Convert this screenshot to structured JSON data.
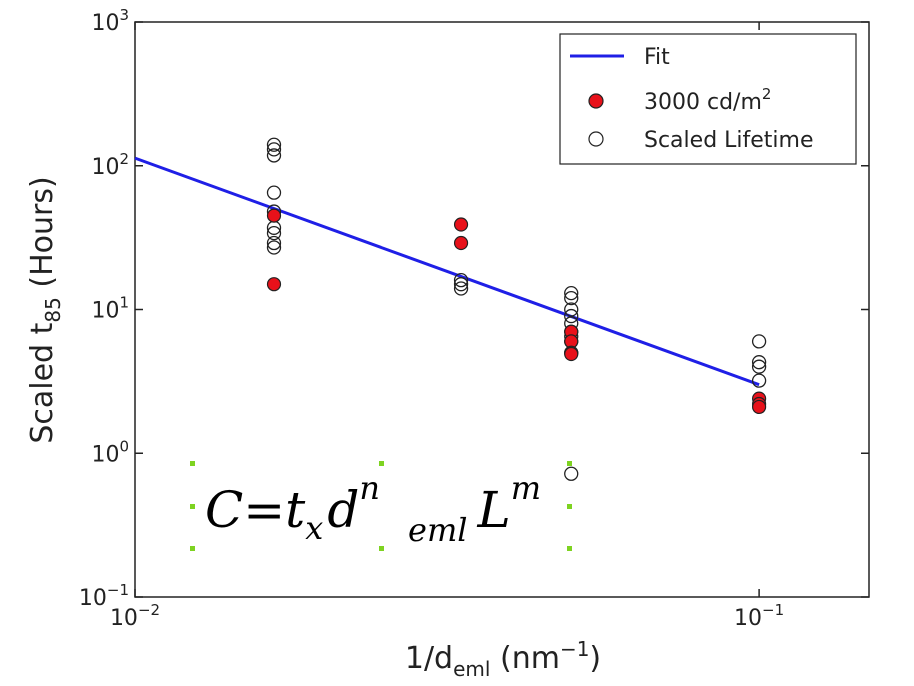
{
  "chart_data": {
    "type": "scatter",
    "xlabel": {
      "base": "1/d",
      "sub": "eml",
      "rest": " (nm",
      "sup": "−1",
      "close": ")"
    },
    "ylabel": {
      "base": "Scaled t",
      "sub": "85",
      "rest": " (Hours)"
    },
    "x_scale": "log",
    "y_scale": "log",
    "xlim": [
      0.01,
      0.15
    ],
    "ylim": [
      0.1,
      1000
    ],
    "x_ticks": [
      {
        "value": 0.01,
        "base": "10",
        "exp": "−2"
      },
      {
        "value": 0.1,
        "base": "10",
        "exp": "−1"
      }
    ],
    "y_ticks": [
      {
        "value": 0.1,
        "base": "10",
        "exp": "−1"
      },
      {
        "value": 1,
        "base": "10",
        "exp": "0"
      },
      {
        "value": 10,
        "base": "10",
        "exp": "1"
      },
      {
        "value": 100,
        "base": "10",
        "exp": "2"
      },
      {
        "value": 1000,
        "base": "10",
        "exp": "3"
      }
    ],
    "grid": false,
    "legend_position": "top-right",
    "series": [
      {
        "name": "Fit",
        "kind": "line",
        "color": "#1f1fe6",
        "x": [
          0.01,
          0.1
        ],
        "y": [
          113,
          3.0
        ]
      },
      {
        "name": "3000 cd/m",
        "name_sup": "2",
        "kind": "filled-marker",
        "color": "#e8111a",
        "x": [
          0.0167,
          0.0167,
          0.0333,
          0.0333,
          0.05,
          0.05,
          0.05,
          0.05,
          0.1,
          0.1,
          0.1
        ],
        "y": [
          45,
          15,
          39,
          29,
          7.0,
          6.0,
          5.0,
          4.9,
          2.4,
          2.2,
          2.1
        ]
      },
      {
        "name": "Scaled Lifetime",
        "kind": "open-marker",
        "color": "#222222",
        "x": [
          0.0167,
          0.0167,
          0.0167,
          0.0167,
          0.0167,
          0.0167,
          0.0167,
          0.0167,
          0.0167,
          0.0333,
          0.0333,
          0.0333,
          0.05,
          0.05,
          0.05,
          0.05,
          0.05,
          0.05,
          0.05,
          0.05,
          0.05,
          0.05,
          0.1,
          0.1,
          0.1,
          0.1
        ],
        "y": [
          140,
          130,
          118,
          65,
          48,
          37,
          34,
          29,
          27,
          16,
          15,
          14,
          13,
          12,
          10,
          9,
          8,
          7,
          6.5,
          6,
          5,
          0.72,
          6.0,
          4.3,
          4.0,
          3.2
        ]
      }
    ],
    "annotation_formula": {
      "C": "C",
      "eq": "=",
      "t": "t",
      "t_sub": "x",
      "d": "d",
      "d_sup": "n",
      "d_sub": "eml",
      "L": "L",
      "L_sup": "m"
    }
  }
}
